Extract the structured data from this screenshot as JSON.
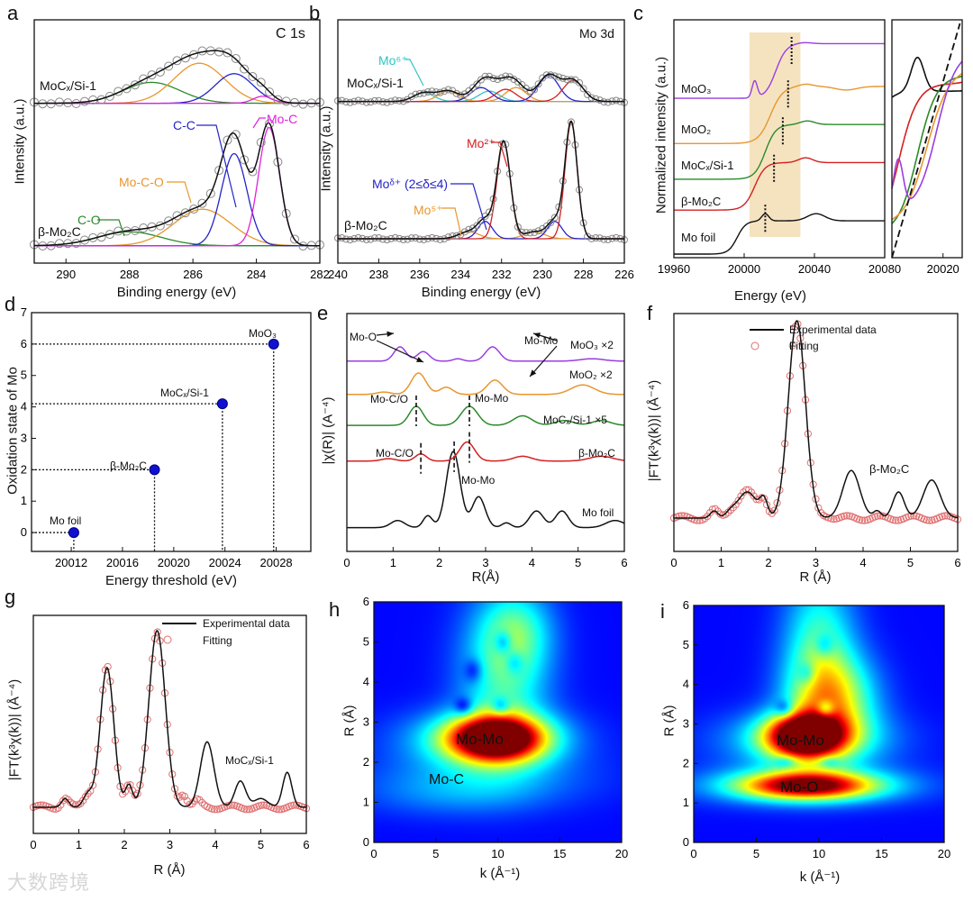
{
  "colors": {
    "green": "#2a8a2a",
    "orange": "#e8962e",
    "blue": "#2424c8",
    "magenta": "#e020e0",
    "cyan": "#2ec4c4",
    "red": "#d42020",
    "purple": "#9a3ee0",
    "black": "#111111",
    "points": "#8a8a8a",
    "fit": "#e07070",
    "shade": "#f5e3c0"
  },
  "panel_labels": [
    "a",
    "b",
    "c",
    "d",
    "e",
    "f",
    "g",
    "h",
    "i"
  ],
  "watermark": "大数跨境",
  "chart_data": [
    {
      "id": "a",
      "type": "line",
      "title": "C 1s",
      "xlabel": "Binding energy (eV)",
      "ylabel": "Intensity (a.u.)",
      "xlim": [
        291,
        282
      ],
      "ylim": [
        -0.1,
        1.3
      ],
      "xticks": [
        290,
        288,
        286,
        284,
        282
      ],
      "series": [
        {
          "name": "MoCₓ/Si-1",
          "offset": 0.82,
          "components": [
            {
              "name": "C-O",
              "color": "green",
              "peak": [
                287.3,
                0.12,
                0.9
              ]
            },
            {
              "name": "Mo-C-O",
              "color": "orange",
              "peak": [
                285.8,
                0.23,
                0.8
              ]
            },
            {
              "name": "C-C",
              "color": "blue",
              "peak": [
                284.7,
                0.17,
                0.6
              ]
            },
            {
              "name": "Mo-C",
              "color": "magenta",
              "peak": [
                283.8,
                0.04,
                0.3
              ]
            }
          ]
        },
        {
          "name": "β-Mo₂C",
          "offset": 0.0,
          "components": [
            {
              "name": "C-O",
              "color": "green",
              "peak": [
                288.0,
                0.08,
                1.0
              ]
            },
            {
              "name": "Mo-C-O",
              "color": "orange",
              "peak": [
                285.7,
                0.21,
                0.9
              ]
            },
            {
              "name": "C-C",
              "color": "blue",
              "peak": [
                284.7,
                0.53,
                0.4
              ]
            },
            {
              "name": "Mo-C",
              "color": "magenta",
              "peak": [
                283.6,
                0.68,
                0.33
              ]
            }
          ]
        }
      ],
      "labels": {
        "moc": "MoCₓ/Si-1",
        "mo2c": "β-Mo₂C",
        "cc": "C-C",
        "moc_bond": "Mo-C",
        "mocoo": "Mo-C-O",
        "co": "C-O"
      }
    },
    {
      "id": "b",
      "type": "line",
      "title": "Mo 3d",
      "xlabel": "Binding energy (eV)",
      "ylabel": "Intensity (a.u.)",
      "xlim": [
        240,
        226
      ],
      "ylim": [
        -0.1,
        1.3
      ],
      "xticks": [
        240,
        238,
        236,
        234,
        232,
        230,
        228,
        226
      ],
      "series": [
        {
          "name": "MoCₓ/Si-1",
          "offset": 0.83,
          "components": [
            {
              "name": "Mo⁶⁺",
              "color": "cyan",
              "peaks": [
                [
                  235.8,
                  0.05,
                  0.5
                ],
                [
                  232.6,
                  0.06,
                  0.5
                ]
              ]
            },
            {
              "name": "Mo⁵⁺",
              "color": "orange",
              "peaks": [
                [
                  234.6,
                  0.06,
                  0.5
                ],
                [
                  231.3,
                  0.08,
                  0.5
                ]
              ]
            },
            {
              "name": "Moᵟ⁺",
              "color": "blue",
              "peaks": [
                [
                  233.0,
                  0.08,
                  0.5
                ],
                [
                  229.7,
                  0.15,
                  0.5
                ]
              ]
            },
            {
              "name": "Mo²⁺",
              "color": "red",
              "peaks": [
                [
                  231.8,
                  0.07,
                  0.5
                ],
                [
                  228.5,
                  0.12,
                  0.5
                ]
              ]
            }
          ]
        },
        {
          "name": "β-Mo₂C",
          "offset": 0.04,
          "components": [
            {
              "name": "Mo⁵⁺",
              "color": "orange",
              "peaks": [
                [
                  233.6,
                  0.04,
                  0.5
                ],
                [
                  230.4,
                  0.04,
                  0.5
                ]
              ]
            },
            {
              "name": "Moᵟ⁺",
              "color": "blue",
              "peaks": [
                [
                  232.8,
                  0.1,
                  0.35
                ],
                [
                  229.4,
                  0.1,
                  0.35
                ]
              ]
            },
            {
              "name": "Mo²⁺",
              "color": "red",
              "peaks": [
                [
                  231.9,
                  0.56,
                  0.33
                ],
                [
                  228.6,
                  0.67,
                  0.3
                ]
              ]
            }
          ]
        }
      ],
      "labels": {
        "mo6": "Mo⁶⁺",
        "moc": "MoCₓ/Si-1",
        "mo2": "Mo²⁺",
        "modelta": "Moᵟ⁺ (2≤δ≤4)",
        "mo5": "Mo⁵⁺",
        "mo2c": "β-Mo₂C"
      }
    },
    {
      "id": "c",
      "type": "line",
      "xlabel": "Energy (eV)",
      "ylabel": "Normalized intensity (a.u.)",
      "xlim": [
        19960,
        20080
      ],
      "ylim": [
        0,
        1
      ],
      "xticks": [
        19960,
        20000,
        20040,
        20080
      ],
      "shaded_range": [
        20003,
        20032
      ],
      "series": [
        {
          "name": "Mo foil",
          "color": "black",
          "base": 0.015,
          "step": 0.14,
          "E0": 19996,
          "w": 2.5,
          "bumps": [
            [
              20012,
              0.03,
              2
            ],
            [
              20041,
              0.03,
              5
            ]
          ],
          "edge_marker": 20012,
          "inset_offset": 0.0
        },
        {
          "name": "β-Mo₂C",
          "color": "red",
          "base": 0.2,
          "step": 0.2,
          "E0": 20006,
          "w": 3,
          "bumps": [
            [
              20035,
              0.02,
              4
            ]
          ],
          "edge_marker": 20017,
          "inset_offset": 0.05
        },
        {
          "name": "MoCₓ/Si-1",
          "color": "green",
          "base": 0.33,
          "step": 0.23,
          "E0": 20012,
          "w": 3,
          "bumps": [
            [
              20036,
              0.015,
              4
            ]
          ],
          "edge_marker": 20022,
          "inset_offset": 0.1
        },
        {
          "name": "MoO₂",
          "color": "orange",
          "base": 0.48,
          "step": 0.24,
          "E0": 20015,
          "w": 3.5,
          "bumps": [
            [
              20035,
              0.01,
              4
            ],
            [
              20058,
              -0.015,
              6
            ]
          ],
          "edge_marker": 20025,
          "inset_offset": 0.15
        },
        {
          "name": "MoO₃",
          "color": "purple",
          "base": 0.67,
          "step": 0.23,
          "E0": 20018,
          "w": 3,
          "bumps": [
            [
              20006,
              0.07,
              1.5
            ],
            [
              20034,
              0.005,
              4
            ]
          ],
          "edge_marker": 20027,
          "inset_offset": 0.25
        }
      ],
      "inset": {
        "xlim": [
          20004,
          20026
        ],
        "ylim": [
          -0.05,
          1.45
        ],
        "xticks": [
          20020
        ]
      }
    },
    {
      "id": "d",
      "type": "scatter",
      "xlabel": "Energy threshold (eV)",
      "ylabel": "Oxidation state of Mo",
      "xlim": [
        20008.9,
        20030.7
      ],
      "ylim": [
        -0.6,
        7
      ],
      "xticks": [
        20012,
        20016,
        20020,
        20024,
        20028
      ],
      "yticks": [
        0,
        1,
        2,
        3,
        4,
        5,
        6,
        7
      ],
      "points": [
        {
          "name": "Mo foil",
          "x": 20012.2,
          "y": 0
        },
        {
          "name": "β-Mo₂C",
          "x": 20018.5,
          "y": 2
        },
        {
          "name": "MoCₓ/Si-1",
          "x": 20023.8,
          "y": 4.1
        },
        {
          "name": "MoO₃",
          "x": 20027.8,
          "y": 6
        }
      ]
    },
    {
      "id": "e",
      "type": "line",
      "xlabel": "R(Å)",
      "ylabel": "|χ(R)| (A⁻⁴)",
      "xlim": [
        0,
        6
      ],
      "ylim": [
        0,
        1
      ],
      "xticks": [
        0,
        1,
        2,
        3,
        4,
        5,
        6
      ],
      "series": [
        {
          "name": "Mo foil",
          "color": "black",
          "base": 0.1,
          "peaks": [
            [
              2.3,
              0.32,
              0.15
            ],
            [
              2.85,
              0.13,
              0.14
            ],
            [
              1.75,
              0.05,
              0.1
            ],
            [
              4.1,
              0.07,
              0.15
            ],
            [
              4.65,
              0.07,
              0.14
            ],
            [
              1.1,
              0.03,
              0.15
            ],
            [
              3.45,
              0.02,
              0.1
            ],
            [
              5.8,
              0.03,
              0.2
            ]
          ],
          "markers": [
            2.32
          ]
        },
        {
          "name": "β-Mo₂C",
          "color": "red",
          "base": 0.38,
          "peaks": [
            [
              2.6,
              0.08,
              0.16
            ],
            [
              1.6,
              0.03,
              0.12
            ],
            [
              3.8,
              0.02,
              0.2
            ],
            [
              5.5,
              0.02,
              0.25
            ],
            [
              0.9,
              0.01,
              0.15
            ]
          ],
          "markers": [
            1.6,
            2.65
          ]
        },
        {
          "name": "MoCₓ/Si-1 ×5",
          "color": "green",
          "base": 0.53,
          "peaks": [
            [
              1.5,
              0.08,
              0.15
            ],
            [
              2.65,
              0.08,
              0.18
            ],
            [
              3.8,
              0.04,
              0.2
            ],
            [
              4.7,
              0.02,
              0.2
            ],
            [
              5.5,
              0.02,
              0.2
            ]
          ],
          "markers": [
            1.5,
            2.65
          ]
        },
        {
          "name": "MoO₂ ×2",
          "color": "orange",
          "base": 0.66,
          "peaks": [
            [
              1.55,
              0.09,
              0.16
            ],
            [
              2.15,
              0.03,
              0.14
            ],
            [
              3.2,
              0.06,
              0.17
            ],
            [
              5.1,
              0.04,
              0.25
            ],
            [
              0.8,
              0.01,
              0.15
            ]
          ],
          "markers": []
        },
        {
          "name": "MoO₃ ×2",
          "color": "purple",
          "base": 0.8,
          "peaks": [
            [
              1.15,
              0.06,
              0.13
            ],
            [
              1.65,
              0.04,
              0.13
            ],
            [
              3.15,
              0.06,
              0.15
            ],
            [
              2.4,
              0.01,
              0.1
            ],
            [
              5.3,
              0.01,
              0.25
            ]
          ],
          "markers": []
        }
      ],
      "labels": {
        "moo": "Mo-O",
        "momo": "Mo-Mo",
        "mocod": "Mo-C/O"
      }
    },
    {
      "id": "f",
      "type": "line",
      "xlabel": "R (Å)",
      "ylabel": "|FT(k³χ(k))| (Å⁻⁴)",
      "xlim": [
        0,
        6
      ],
      "ylim": [
        0,
        1
      ],
      "xticks": [
        0,
        1,
        2,
        3,
        4,
        5,
        6
      ],
      "legend": [
        "Experimental data",
        "Fitting"
      ],
      "legend_position": "top-right",
      "sample": "β-Mo₂C",
      "base": 0.14,
      "experimental": [
        [
          2.6,
          0.83,
          0.18
        ],
        [
          1.55,
          0.11,
          0.2
        ],
        [
          1.9,
          0.07,
          0.08
        ],
        [
          0.85,
          0.03,
          0.08
        ],
        [
          1.2,
          0.02,
          0.1
        ],
        [
          3.75,
          0.2,
          0.18
        ],
        [
          4.75,
          0.11,
          0.12
        ],
        [
          5.45,
          0.16,
          0.18
        ],
        [
          4.3,
          0.03,
          0.08
        ]
      ],
      "fit": [
        [
          2.6,
          0.83,
          0.18
        ],
        [
          1.55,
          0.11,
          0.2
        ],
        [
          1.9,
          0.07,
          0.08
        ],
        [
          0.85,
          0.03,
          0.08
        ],
        [
          1.2,
          0.02,
          0.1
        ],
        [
          3.25,
          0.01,
          0.1
        ]
      ],
      "fit_range": [
        0,
        6
      ]
    },
    {
      "id": "g",
      "type": "line",
      "xlabel": "R (Å)",
      "ylabel": "|FT(k³χ(k))| (Å⁻⁴)",
      "xlim": [
        0,
        6
      ],
      "ylim": [
        0,
        1
      ],
      "xticks": [
        0,
        1,
        2,
        3,
        4,
        5,
        6
      ],
      "legend": [
        "Experimental data",
        "Fitting"
      ],
      "legend_position": "top-right",
      "sample": "MoCₓ/Si-1",
      "base": 0.12,
      "experimental": [
        [
          1.62,
          0.64,
          0.15
        ],
        [
          2.72,
          0.81,
          0.18
        ],
        [
          2.1,
          0.1,
          0.08
        ],
        [
          1.2,
          0.06,
          0.1
        ],
        [
          0.7,
          0.04,
          0.08
        ],
        [
          3.82,
          0.3,
          0.15
        ],
        [
          4.55,
          0.12,
          0.12
        ],
        [
          5.0,
          0.04,
          0.15
        ],
        [
          5.58,
          0.16,
          0.1
        ]
      ],
      "fit": [
        [
          1.62,
          0.64,
          0.15
        ],
        [
          2.72,
          0.81,
          0.18
        ],
        [
          2.1,
          0.1,
          0.08
        ],
        [
          1.2,
          0.06,
          0.1
        ],
        [
          0.7,
          0.04,
          0.08
        ],
        [
          3.3,
          0.06,
          0.08
        ],
        [
          3.6,
          0.03,
          0.08
        ]
      ],
      "fit_range": [
        0,
        6
      ]
    },
    {
      "id": "h",
      "type": "heatmap",
      "xlabel": "k (Å⁻¹)",
      "ylabel": "R (Å)",
      "xlim": [
        0,
        20
      ],
      "ylim": [
        0,
        6
      ],
      "xticks": [
        0,
        5,
        10,
        15,
        20
      ],
      "yticks": [
        0,
        1,
        2,
        3,
        4,
        5,
        6
      ],
      "background": 0.13,
      "labels": [
        "Mo-Mo",
        "Mo-C"
      ],
      "hotspots": [
        [
          9.8,
          2.6,
          0.9,
          2.6,
          0.38
        ],
        [
          9,
          2.6,
          0.3,
          4.5,
          0.5
        ],
        [
          10.5,
          4.2,
          0.3,
          2.5,
          1.3
        ],
        [
          11.5,
          5.3,
          0.2,
          2,
          0.7
        ],
        [
          9,
          1.6,
          0.13,
          6,
          0.5
        ],
        [
          6,
          1.2,
          0.08,
          5,
          0.4
        ],
        [
          10.4,
          5.0,
          -0.2,
          0.5,
          0.2
        ],
        [
          8,
          4.3,
          -0.15,
          0.5,
          0.2
        ],
        [
          11.3,
          4.5,
          -0.15,
          0.5,
          0.2
        ],
        [
          7.2,
          3.4,
          -0.2,
          0.5,
          0.15
        ],
        [
          10.2,
          3.4,
          -0.2,
          0.5,
          0.15
        ]
      ]
    },
    {
      "id": "i",
      "type": "heatmap",
      "xlabel": "k (Å⁻¹)",
      "ylabel": "R (Å)",
      "xlim": [
        0,
        20
      ],
      "ylim": [
        0,
        6
      ],
      "xticks": [
        0,
        5,
        10,
        15,
        20
      ],
      "yticks": [
        0,
        1,
        2,
        3,
        4,
        5,
        6
      ],
      "background": 0.13,
      "labels": [
        "Mo-Mo",
        "Mo-O"
      ],
      "hotspots": [
        [
          8.8,
          2.7,
          0.9,
          2.1,
          0.38
        ],
        [
          9,
          2.6,
          0.3,
          4.5,
          0.5
        ],
        [
          9,
          1.45,
          0.72,
          3.6,
          0.24
        ],
        [
          9,
          1.45,
          0.25,
          6,
          0.35
        ],
        [
          11,
          3.6,
          0.45,
          2.4,
          0.8
        ],
        [
          10,
          5,
          0.3,
          2,
          1.3
        ],
        [
          10.5,
          3.4,
          -0.25,
          0.5,
          0.15
        ],
        [
          7.2,
          3.4,
          -0.2,
          0.5,
          0.15
        ],
        [
          9,
          4.3,
          -0.15,
          0.5,
          0.2
        ],
        [
          10.4,
          5.0,
          -0.15,
          0.5,
          0.2
        ],
        [
          7.3,
          2.05,
          -0.15,
          0.6,
          0.1
        ],
        [
          10.8,
          2.05,
          -0.15,
          0.6,
          0.1
        ]
      ]
    }
  ]
}
